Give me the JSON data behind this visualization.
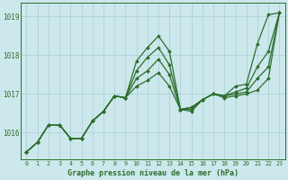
{
  "title": "Graphe pression niveau de la mer (hPa)",
  "background_color": "#cce8ec",
  "grid_color": "#a8cdd4",
  "line_color": "#2d6e2d",
  "hours": [
    0,
    1,
    2,
    3,
    4,
    5,
    6,
    7,
    8,
    9,
    10,
    11,
    12,
    13,
    14,
    15,
    16,
    17,
    18,
    19,
    20,
    21,
    22,
    23
  ],
  "series1": [
    1015.5,
    1015.75,
    1016.2,
    1016.2,
    1015.85,
    1015.85,
    1016.3,
    1016.55,
    1016.95,
    1016.9,
    1017.85,
    1018.2,
    1018.5,
    1018.1,
    1016.6,
    1016.55,
    1016.85,
    1017.0,
    1016.95,
    1017.2,
    1017.25,
    1018.3,
    1019.05,
    1019.1
  ],
  "series2": [
    1015.5,
    1015.75,
    1016.2,
    1016.2,
    1015.85,
    1015.85,
    1016.3,
    1016.55,
    1016.95,
    1016.9,
    1017.6,
    1017.95,
    1018.2,
    1017.75,
    1016.6,
    1016.6,
    1016.85,
    1017.0,
    1016.95,
    1017.05,
    1017.15,
    1017.7,
    1018.1,
    1019.1
  ],
  "series3": [
    1015.5,
    1015.75,
    1016.2,
    1016.2,
    1015.85,
    1015.85,
    1016.3,
    1016.55,
    1016.95,
    1016.9,
    1017.4,
    1017.6,
    1017.9,
    1017.5,
    1016.6,
    1016.65,
    1016.85,
    1017.0,
    1016.95,
    1017.0,
    1017.05,
    1017.4,
    1017.7,
    1019.1
  ],
  "series4": [
    1015.5,
    1015.75,
    1016.2,
    1016.2,
    1015.85,
    1015.85,
    1016.3,
    1016.55,
    1016.95,
    1016.9,
    1017.2,
    1017.35,
    1017.55,
    1017.2,
    1016.6,
    1016.65,
    1016.85,
    1017.0,
    1016.9,
    1016.95,
    1017.0,
    1017.1,
    1017.4,
    1019.1
  ],
  "ylim_min": 1015.3,
  "ylim_max": 1019.35,
  "yticks": [
    1016,
    1017,
    1018,
    1019
  ]
}
